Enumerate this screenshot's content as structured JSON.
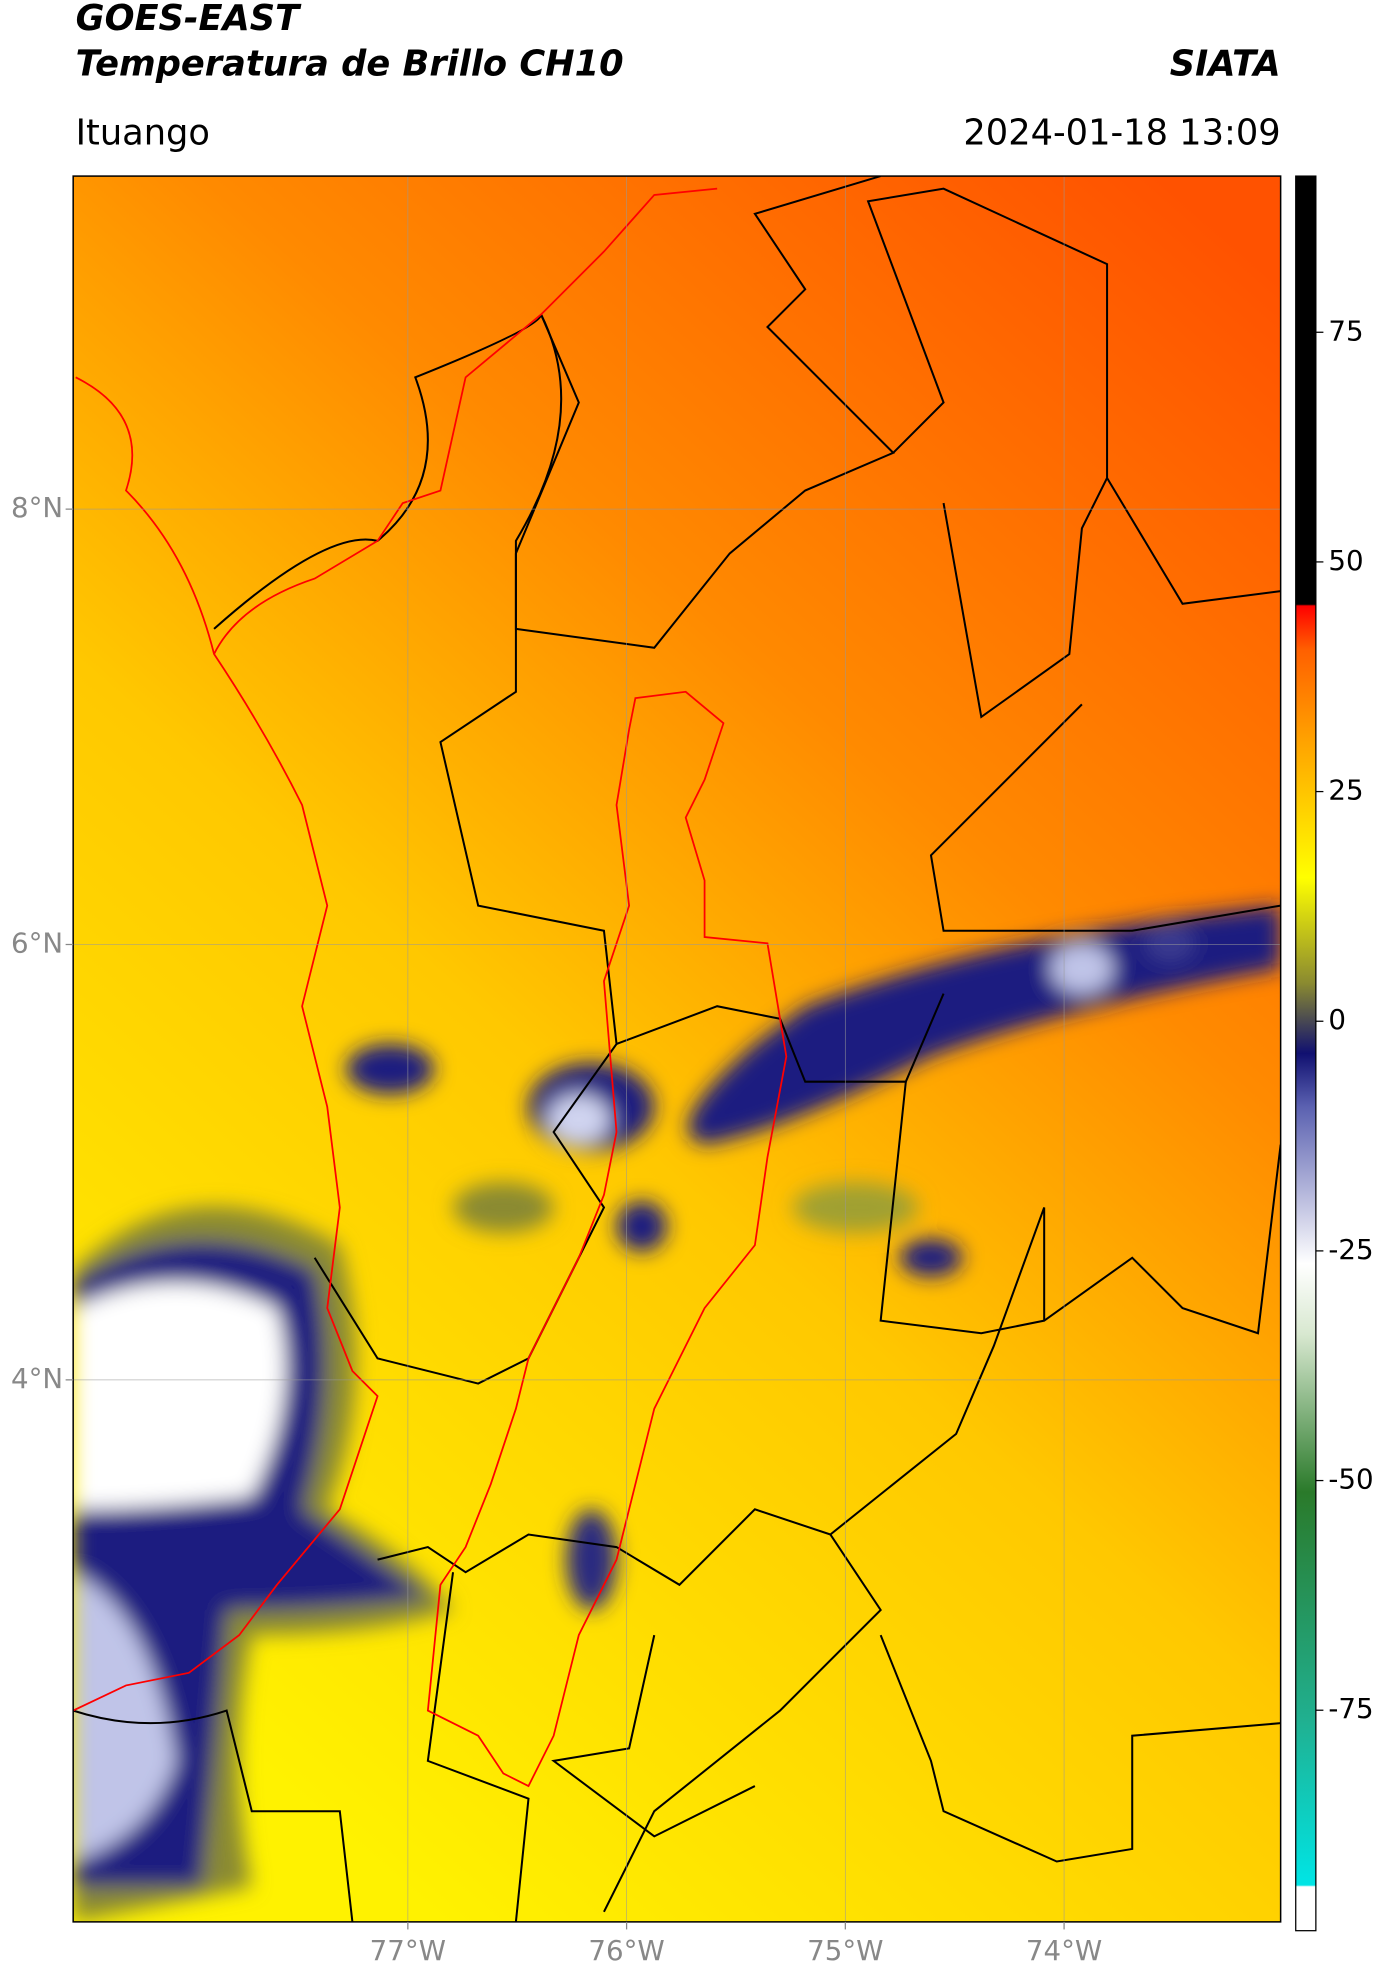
{
  "header": {
    "title": "GOES-EAST",
    "subtitle": "Temperatura de Brillo CH10",
    "source": "SIATA",
    "location": "Ituango",
    "timestamp": "2024-01-18 13:09"
  },
  "map": {
    "xlim": [
      -78.53,
      -73.01
    ],
    "ylim": [
      1.51,
      9.53
    ],
    "xticks": [
      {
        "value": -77,
        "label": "77°W"
      },
      {
        "value": -76,
        "label": "76°W"
      },
      {
        "value": -75,
        "label": "75°W"
      },
      {
        "value": -74,
        "label": "74°W"
      }
    ],
    "yticks": [
      {
        "value": 4,
        "label": "4°N"
      },
      {
        "value": 6,
        "label": "6°N"
      },
      {
        "value": 8,
        "label": "8°N"
      }
    ],
    "grid": true
  },
  "colorbar": {
    "lim": [
      -99,
      92
    ],
    "ticks": [
      -75,
      -50,
      -25,
      0,
      25,
      50,
      75
    ]
  }
}
